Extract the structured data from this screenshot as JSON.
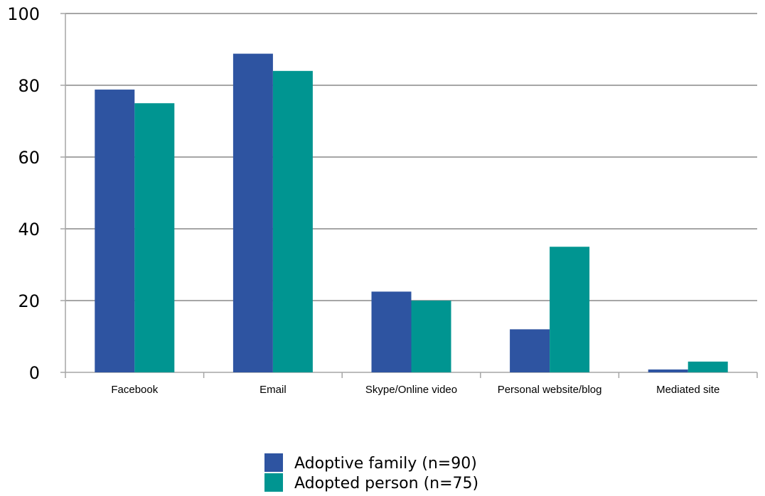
{
  "chart_data": {
    "type": "bar",
    "title": "",
    "xlabel": "",
    "ylabel": "",
    "categories": [
      "Facebook",
      "Email",
      "Skype/Online video",
      "Personal website/blog",
      "Mediated site"
    ],
    "series": [
      {
        "name": "Adoptive family (n=90)",
        "color": "#2e54a1",
        "values": [
          78.8,
          88.8,
          22.5,
          12.0,
          0.8
        ]
      },
      {
        "name": "Adopted person (n=75)",
        "color": "#009591",
        "values": [
          75.0,
          84.0,
          20.0,
          35.0,
          3.0
        ]
      }
    ],
    "ylim": [
      0,
      100
    ],
    "yticks": [
      "0",
      "20",
      "40",
      "60",
      "80",
      "100"
    ],
    "grid": true,
    "legend": "bottom"
  }
}
